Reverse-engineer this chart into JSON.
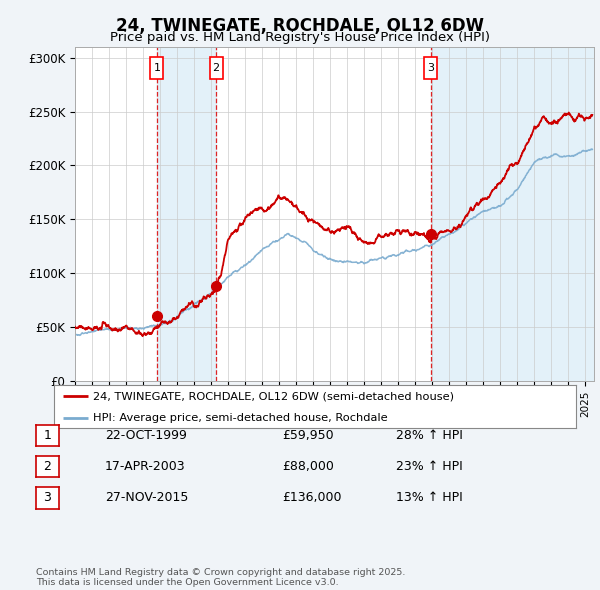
{
  "title": "24, TWINEGATE, ROCHDALE, OL12 6DW",
  "subtitle": "Price paid vs. HM Land Registry's House Price Index (HPI)",
  "ylabel_ticks": [
    "£0",
    "£50K",
    "£100K",
    "£150K",
    "£200K",
    "£250K",
    "£300K"
  ],
  "ytick_values": [
    0,
    50000,
    100000,
    150000,
    200000,
    250000,
    300000
  ],
  "ylim": [
    0,
    310000
  ],
  "xlim_start": 1995.0,
  "xlim_end": 2025.5,
  "transactions": [
    {
      "label": "1",
      "date_str": "22-OCT-1999",
      "year": 1999.81,
      "price": 59950,
      "hpi_pct": "28%"
    },
    {
      "label": "2",
      "date_str": "17-APR-2003",
      "year": 2003.29,
      "price": 88000,
      "hpi_pct": "23%"
    },
    {
      "label": "3",
      "date_str": "27-NOV-2015",
      "year": 2015.91,
      "price": 136000,
      "hpi_pct": "13%"
    }
  ],
  "legend_line1": "24, TWINEGATE, ROCHDALE, OL12 6DW (semi-detached house)",
  "legend_line2": "HPI: Average price, semi-detached house, Rochdale",
  "line_color_red": "#cc0000",
  "line_color_blue": "#7aabcf",
  "footnote": "Contains HM Land Registry data © Crown copyright and database right 2025.\nThis data is licensed under the Open Government Licence v3.0.",
  "table_rows": [
    [
      "1",
      "22-OCT-1999",
      "£59,950",
      "28% ↑ HPI"
    ],
    [
      "2",
      "17-APR-2003",
      "£88,000",
      "23% ↑ HPI"
    ],
    [
      "3",
      "27-NOV-2015",
      "£136,000",
      "13% ↑ HPI"
    ]
  ],
  "background_color": "#f0f4f8",
  "plot_bg_color": "#ffffff",
  "shaded_regions": [
    {
      "start": 1999.81,
      "end": 2003.29
    },
    {
      "start": 2015.91,
      "end": 2025.5
    }
  ],
  "marker_prices": [
    59950,
    88000,
    136000
  ]
}
